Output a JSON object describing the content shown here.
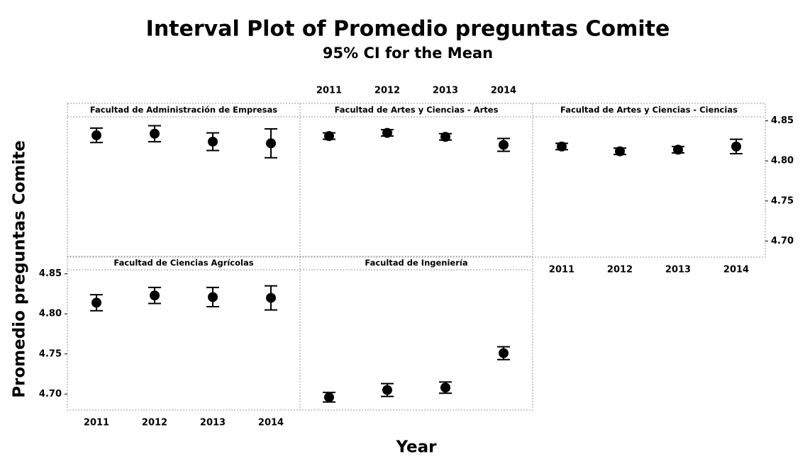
{
  "title": "Interval Plot of Promedio preguntas Comite",
  "subtitle": "95% CI for the Mean",
  "x_label": "Year",
  "y_label": "Promedio preguntas Comite",
  "categories": [
    "2011",
    "2012",
    "2013",
    "2014"
  ],
  "ylim": [
    4.68,
    4.855
  ],
  "yticks": [
    {
      "value": 4.7,
      "label": "4.70"
    },
    4.75,
    {
      "value": 4.8,
      "label": "4.80"
    },
    4.85
  ],
  "color": "#000000",
  "chart_data": [
    {
      "type": "interval",
      "title": "Facultad de Administración de Empresas",
      "values": [
        4.832,
        4.834,
        4.824,
        4.822
      ],
      "errors": [
        0.009,
        0.01,
        0.011,
        0.018
      ]
    },
    {
      "type": "interval",
      "title": "Facultad de Artes y Ciencias - Artes",
      "values": [
        4.831,
        4.835,
        4.83,
        4.82
      ],
      "errors": [
        0.004,
        0.004,
        0.004,
        0.008
      ]
    },
    {
      "type": "interval",
      "title": "Facultad de Artes y Ciencias - Ciencias",
      "values": [
        4.818,
        4.812,
        4.814,
        4.818
      ],
      "errors": [
        0.004,
        0.004,
        0.004,
        0.009
      ]
    },
    {
      "type": "interval",
      "title": "Facultad de Ciencias Agrícolas",
      "values": [
        4.814,
        4.823,
        4.821,
        4.82
      ],
      "errors": [
        0.01,
        0.01,
        0.012,
        0.015
      ]
    },
    {
      "type": "interval",
      "title": "Facultad de Ingeniería",
      "values": [
        4.696,
        4.705,
        4.708,
        4.751
      ],
      "errors": [
        0.006,
        0.008,
        0.007,
        0.008
      ]
    }
  ]
}
